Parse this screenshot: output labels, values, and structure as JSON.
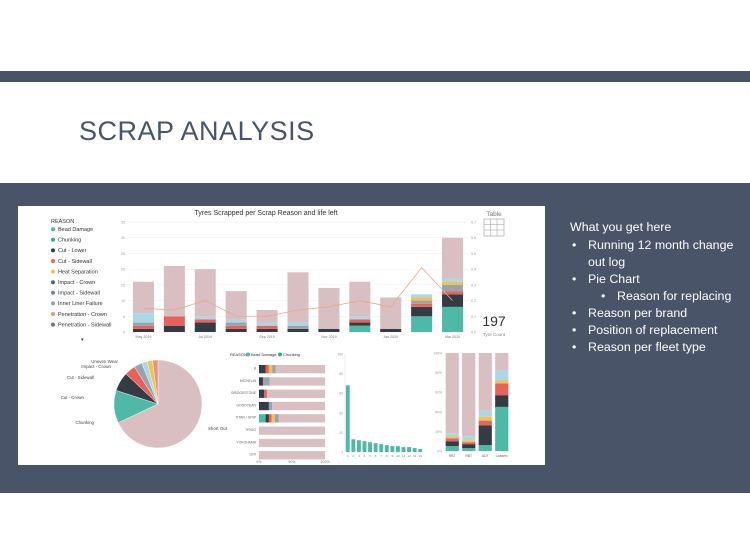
{
  "slide": {
    "title": "SCRAP ANALYSIS",
    "bullets_intro": "What you get here",
    "bullets": [
      {
        "text": "Running 12 month change out log",
        "level": 1
      },
      {
        "text": "Pie Chart",
        "level": 1
      },
      {
        "text": "Reason for replacing",
        "level": 2
      },
      {
        "text": "Reason per brand",
        "level": 1
      },
      {
        "text": "Position of replacement",
        "level": 1
      },
      {
        "text": "Reason per fleet type",
        "level": 1
      }
    ]
  },
  "dashboard": {
    "logo_text": "Table",
    "main_title": "Tyres Scrapped per Scrap Reason and life left",
    "kpi_value": "197",
    "kpi_label": "Tyre Count",
    "legend_title": "REASON",
    "legend": [
      {
        "name": "Bead Damage",
        "color": "#4fb9a8"
      },
      {
        "name": "Chunking",
        "color": "#3aa89b"
      },
      {
        "name": "Cut - Lower",
        "color": "#333b45"
      },
      {
        "name": "Cut - Sidewall",
        "color": "#e8625c"
      },
      {
        "name": "Heat Separation",
        "color": "#f2c14e"
      },
      {
        "name": "Impact - Crown",
        "color": "#5c6470"
      },
      {
        "name": "Impact - Sidewall",
        "color": "#7b8591"
      },
      {
        "name": "Inner Liner Failure",
        "color": "#9aa2ad"
      },
      {
        "name": "Penetration - Crown",
        "color": "#e8947a"
      },
      {
        "name": "Penetration - Sidewall",
        "color": "#6e737b"
      }
    ],
    "bar_legend": [
      {
        "name": "Bead Damage",
        "color": "#4fb9a8"
      },
      {
        "name": "Chunking",
        "color": "#3aa89b"
      }
    ],
    "bar_legend_title": "REASON"
  },
  "chart_data": [
    {
      "type": "bar",
      "title": "Tyres Scrapped per Scrap Reason and life left",
      "categories": [
        "May 2019",
        "",
        "Jul 2019",
        "",
        "Sep 2019",
        "",
        "Nov 2019",
        "",
        "Jan 2020",
        "",
        "Mar 2020"
      ],
      "y_ticks": [
        "0",
        "5",
        "10",
        "15",
        "20",
        "25",
        "30",
        "35"
      ],
      "y2_ticks": [
        "0.0",
        "0.1",
        "0.2",
        "0.3",
        "0.4",
        "0.5",
        "0.6",
        "0.7"
      ],
      "ylim": [
        0,
        35
      ],
      "series": [
        {
          "color": "#4fb9a8",
          "values": [
            0,
            0,
            0,
            0,
            0,
            0,
            0,
            2,
            0,
            5,
            8
          ]
        },
        {
          "color": "#333b45",
          "values": [
            1,
            2,
            3,
            1,
            1,
            1,
            1,
            1,
            1,
            3,
            4
          ]
        },
        {
          "color": "#e8625c",
          "values": [
            1,
            3,
            1,
            1,
            1,
            0,
            0,
            1,
            0,
            1,
            1
          ]
        },
        {
          "color": "#9aa2ad",
          "values": [
            1,
            0,
            0,
            1,
            0,
            1,
            0,
            0,
            0,
            1,
            2
          ]
        },
        {
          "color": "#f2c14e",
          "values": [
            0,
            0,
            0,
            0,
            0,
            0,
            0,
            0,
            0,
            1,
            1
          ]
        },
        {
          "color": "#a9d8ea",
          "values": [
            3,
            0,
            1,
            1,
            1,
            1,
            0,
            1,
            0,
            1,
            1
          ]
        },
        {
          "color": "#d9bfc1",
          "values": [
            10,
            16,
            15,
            9,
            4,
            16,
            13,
            11,
            10,
            0,
            13
          ]
        }
      ],
      "line_values": [
        0.15,
        0.14,
        0.2,
        0.1,
        0.1,
        0.14,
        0.16,
        0.2,
        0.16,
        0.41,
        0.2
      ]
    },
    {
      "type": "pie",
      "labels": [
        "Uneven Wear",
        "Impact - Crown",
        "Cut - Sidewall",
        "Cut - Crown",
        "Chunking",
        "Short Out"
      ],
      "slices": [
        {
          "label": "Short Out",
          "value": 68,
          "color": "#d9bfc1"
        },
        {
          "label": "Chunking",
          "value": 12,
          "color": "#4fb9a8"
        },
        {
          "label": "Cut - Crown",
          "value": 7,
          "color": "#333b45"
        },
        {
          "label": "Cut - Sidewall",
          "value": 4,
          "color": "#e8625c"
        },
        {
          "label": "Impact - Crown",
          "value": 3,
          "color": "#9aa2ad"
        },
        {
          "label": "Uneven Wear",
          "value": 2,
          "color": "#a9d8ea"
        },
        {
          "label": "",
          "value": 2,
          "color": "#f2c14e"
        },
        {
          "label": "",
          "value": 2,
          "color": "#e8947a"
        }
      ]
    },
    {
      "type": "bar",
      "orientation": "horizontal-stacked-100",
      "categories": [
        "B",
        "MICHELIN",
        "BRIDGESTONE",
        "GOODYEAR",
        "TITAN / GRIP",
        "TRIGO",
        "YOKOHAMA",
        "GITI"
      ],
      "x_ticks": [
        "0%",
        "50%",
        "100%"
      ],
      "series": [
        {
          "color": "#4fb9a8",
          "values": [
            0,
            0,
            0,
            0,
            10,
            0,
            0,
            0
          ]
        },
        {
          "color": "#333b45",
          "values": [
            10,
            6,
            8,
            15,
            5,
            0,
            0,
            0
          ]
        },
        {
          "color": "#e8625c",
          "values": [
            5,
            0,
            4,
            0,
            4,
            0,
            0,
            0
          ]
        },
        {
          "color": "#f2c14e",
          "values": [
            5,
            0,
            0,
            0,
            5,
            0,
            0,
            0
          ]
        },
        {
          "color": "#9aa2ad",
          "values": [
            5,
            10,
            0,
            5,
            6,
            0,
            0,
            0
          ]
        },
        {
          "color": "#d9bfc1",
          "values": [
            75,
            84,
            88,
            80,
            70,
            88,
            100,
            100
          ]
        }
      ]
    },
    {
      "type": "bar",
      "categories": [
        "1",
        "2",
        "3",
        "4",
        "5",
        "6",
        "7",
        "8",
        "9",
        "10",
        "11",
        "12",
        "13",
        "14"
      ],
      "y_ticks": [
        "0",
        "20",
        "40",
        "60",
        "80",
        "100"
      ],
      "ylim": [
        0,
        100
      ],
      "values": [
        68,
        13,
        12,
        11,
        10,
        9,
        8,
        7,
        6,
        6,
        5,
        5,
        4,
        3
      ],
      "color": "#4fb9a8"
    },
    {
      "type": "bar",
      "orientation": "vertical-stacked-100",
      "categories": [
        "RBT",
        "RBT",
        "ADT",
        "Loaders"
      ],
      "y_ticks": [
        "0%",
        "20%",
        "40%",
        "60%",
        "80%",
        "100%"
      ],
      "series": [
        {
          "color": "#4fb9a8",
          "values": [
            5,
            3,
            6,
            45
          ]
        },
        {
          "color": "#333b45",
          "values": [
            5,
            4,
            20,
            12
          ]
        },
        {
          "color": "#e8625c",
          "values": [
            3,
            2,
            5,
            12
          ]
        },
        {
          "color": "#f2c14e",
          "values": [
            2,
            2,
            4,
            3
          ]
        },
        {
          "color": "#a9d8ea",
          "values": [
            3,
            4,
            6,
            10
          ]
        },
        {
          "color": "#d9bfc1",
          "values": [
            82,
            85,
            59,
            18
          ]
        }
      ]
    }
  ]
}
